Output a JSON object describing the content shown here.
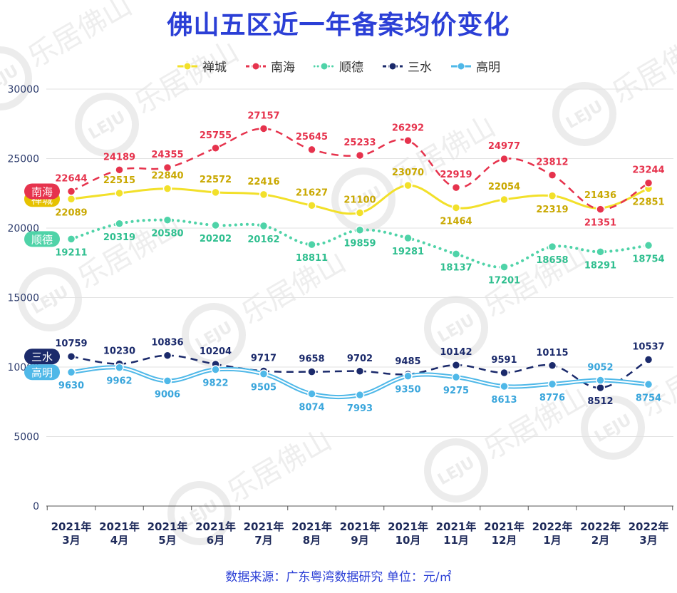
{
  "title": "佛山五区近一年备案均价变化",
  "source_note": "数据来源：广东粤湾数据研究   单位：元/㎡",
  "watermark": {
    "text": "乐居佛山",
    "logo": "LEJU"
  },
  "chart_data": {
    "type": "line",
    "title": "佛山五区近一年备案均价变化",
    "xlabel": "",
    "ylabel": "",
    "ylim": [
      0,
      30000
    ],
    "yticks": [
      0,
      5000,
      10000,
      15000,
      20000,
      25000,
      30000
    ],
    "grid": true,
    "legend_position": "top",
    "categories": [
      [
        "2021年",
        "3月"
      ],
      [
        "2021年",
        "4月"
      ],
      [
        "2021年",
        "5月"
      ],
      [
        "2021年",
        "6月"
      ],
      [
        "2021年",
        "7月"
      ],
      [
        "2021年",
        "8月"
      ],
      [
        "2021年",
        "9月"
      ],
      [
        "2021年",
        "10月"
      ],
      [
        "2021年",
        "11月"
      ],
      [
        "2021年",
        "12月"
      ],
      [
        "2022年",
        "1月"
      ],
      [
        "2022年",
        "2月"
      ],
      [
        "2022年",
        "3月"
      ]
    ],
    "series": [
      {
        "name": "禅城",
        "color": "#f2e02a",
        "label_color": "#c9a800",
        "tag_color": "#e6c200",
        "style": "solid",
        "values": [
          22089,
          22515,
          22840,
          22572,
          22416,
          21627,
          21100,
          23070,
          21464,
          22054,
          22319,
          21436,
          22851
        ],
        "label_pos": [
          "below",
          "above",
          "above",
          "above",
          "above",
          "above",
          "above",
          "above",
          "below",
          "above",
          "below",
          "above",
          "below"
        ]
      },
      {
        "name": "南海",
        "color": "#e6334d",
        "label_color": "#e6334d",
        "tag_color": "#e6334d",
        "style": "dashed",
        "values": [
          22644,
          24189,
          24355,
          25755,
          27157,
          25645,
          25233,
          26292,
          22919,
          24977,
          23812,
          21351,
          23244
        ],
        "label_pos": [
          "above",
          "above",
          "above",
          "above",
          "above",
          "above",
          "above",
          "above",
          "above",
          "above",
          "above",
          "below",
          "above"
        ]
      },
      {
        "name": "顺德",
        "color": "#4fd3a8",
        "label_color": "#2fbf8f",
        "tag_color": "#4fd3a8",
        "style": "dotted",
        "values": [
          19211,
          20319,
          20580,
          20202,
          20162,
          18811,
          19859,
          19281,
          18137,
          17201,
          18658,
          18291,
          18754
        ],
        "label_pos": [
          "below",
          "below",
          "below",
          "below",
          "below",
          "below",
          "below",
          "below",
          "below",
          "below",
          "below",
          "below",
          "below"
        ]
      },
      {
        "name": "三水",
        "color": "#1b2a6b",
        "label_color": "#1b2a6b",
        "tag_color": "#1b2a6b",
        "style": "dashed",
        "values": [
          10759,
          10230,
          10836,
          10204,
          9717,
          9658,
          9702,
          9485,
          10142,
          9591,
          10115,
          8512,
          10537
        ],
        "label_pos": [
          "above",
          "above",
          "above",
          "above",
          "above",
          "above",
          "above",
          "above",
          "above",
          "above",
          "above",
          "below",
          "above"
        ]
      },
      {
        "name": "高明",
        "color": "#4fb8e8",
        "label_color": "#3aa6dc",
        "tag_color": "#4fb8e8",
        "style": "double",
        "values": [
          9630,
          9962,
          9006,
          9822,
          9505,
          8074,
          7993,
          9350,
          9275,
          8613,
          8776,
          9052,
          8754
        ],
        "label_pos": [
          "below",
          "below",
          "below",
          "below",
          "below",
          "below",
          "below",
          "below",
          "below",
          "below",
          "below",
          "above",
          "below"
        ]
      }
    ]
  }
}
